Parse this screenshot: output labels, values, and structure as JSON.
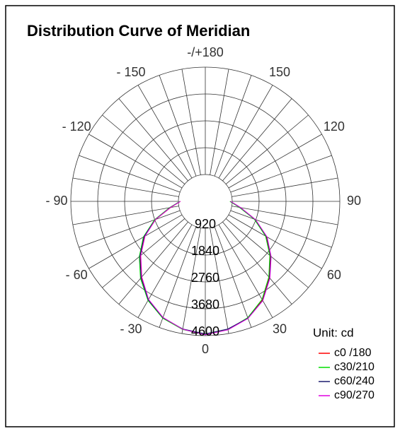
{
  "chart_data": {
    "type": "polar",
    "title": "Distribution Curve of  Meridian",
    "unit_label": "Unit: cd",
    "x": [
      -90,
      -80,
      -70,
      -60,
      -50,
      -40,
      -30,
      -20,
      -10,
      0,
      10,
      20,
      30,
      40,
      50,
      60,
      70,
      80,
      90
    ],
    "series": [
      {
        "name": "c0 /180",
        "color": "#ff0000",
        "values": [
          850,
          1200,
          1800,
          2400,
          2900,
          3400,
          3900,
          4250,
          4450,
          4550,
          4450,
          4250,
          3900,
          3400,
          2900,
          2400,
          1800,
          1200,
          850
        ]
      },
      {
        "name": "c30/210",
        "color": "#00dd00",
        "values": [
          870,
          1250,
          1850,
          2450,
          2950,
          3450,
          3920,
          4260,
          4460,
          4560,
          4460,
          4240,
          3880,
          3380,
          2880,
          2380,
          1780,
          1180,
          840
        ]
      },
      {
        "name": "c60/240",
        "color": "#1a1a6e",
        "values": [
          860,
          1220,
          1820,
          2420,
          2920,
          3420,
          3900,
          4240,
          4440,
          4540,
          4440,
          4260,
          3920,
          3420,
          2920,
          2420,
          1820,
          1220,
          860
        ]
      },
      {
        "name": "c90/270",
        "color": "#e000e0",
        "values": [
          850,
          1210,
          1810,
          2380,
          2880,
          3380,
          3880,
          4230,
          4450,
          4570,
          4470,
          4270,
          3930,
          3440,
          2940,
          2440,
          1830,
          1230,
          870
        ]
      }
    ],
    "rlim": [
      0,
      4600
    ],
    "rticks": [
      920,
      1840,
      2760,
      3680,
      4600
    ],
    "thetaticks": [
      0,
      30,
      60,
      90,
      120,
      150,
      {
        "value": 180,
        "label": "-/+180"
      },
      {
        "value": -150,
        "label": "- 150"
      },
      {
        "value": -120,
        "label": "- 120"
      },
      {
        "value": -90,
        "label": "- 90"
      },
      {
        "value": -60,
        "label": "- 60"
      },
      {
        "value": -30,
        "label": "- 30"
      }
    ]
  }
}
